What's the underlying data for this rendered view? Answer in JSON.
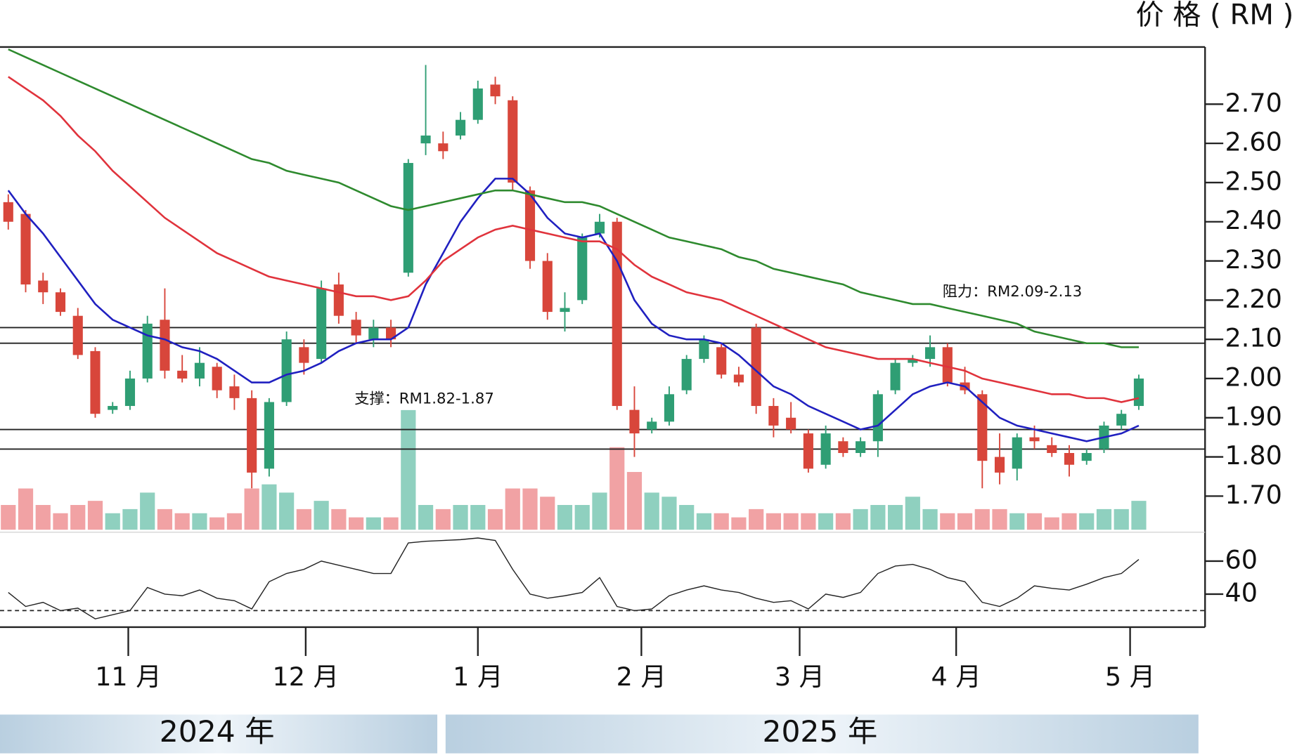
{
  "chart_data": {
    "type": "candlestick",
    "title": "价 格 ( RM )",
    "open": [
      2.45,
      2.42,
      2.25,
      2.22,
      2.16,
      2.07,
      1.92,
      1.93,
      2.0,
      2.15,
      2.02,
      2.0,
      2.03,
      1.98,
      1.95,
      1.77,
      1.94,
      2.08,
      2.05,
      2.24,
      2.15,
      2.1,
      2.13,
      2.27,
      2.6,
      2.6,
      2.62,
      2.66,
      2.75,
      2.71,
      2.48,
      2.3,
      2.17,
      2.2,
      2.37,
      2.4,
      1.92,
      1.87,
      1.89,
      1.97,
      2.05,
      2.08,
      2.01,
      2.13,
      1.93,
      1.9,
      1.86,
      1.78,
      1.84,
      1.81,
      1.84,
      1.97,
      2.04,
      2.05,
      2.08,
      1.99,
      1.96,
      1.8,
      1.77,
      1.85,
      1.83,
      1.81,
      1.79,
      1.82,
      1.88,
      1.93
    ],
    "high": [
      2.47,
      2.43,
      2.27,
      2.23,
      2.18,
      2.08,
      1.94,
      2.02,
      2.16,
      2.23,
      2.06,
      2.08,
      2.04,
      2.01,
      1.97,
      1.95,
      2.12,
      2.1,
      2.25,
      2.27,
      2.17,
      2.15,
      2.15,
      2.56,
      2.8,
      2.63,
      2.68,
      2.76,
      2.77,
      2.72,
      2.49,
      2.32,
      2.22,
      2.37,
      2.42,
      2.41,
      1.98,
      1.9,
      1.98,
      2.06,
      2.11,
      2.09,
      2.03,
      2.14,
      1.95,
      1.94,
      1.87,
      1.88,
      1.85,
      1.85,
      1.97,
      2.05,
      2.06,
      2.11,
      2.09,
      2.03,
      1.97,
      1.86,
      1.86,
      1.88,
      1.85,
      1.83,
      1.82,
      1.89,
      1.92,
      2.01
    ],
    "low": [
      2.38,
      2.22,
      2.19,
      2.16,
      2.05,
      1.9,
      1.91,
      1.92,
      1.99,
      2.0,
      1.99,
      1.98,
      1.95,
      1.92,
      1.72,
      1.75,
      1.93,
      2.01,
      2.04,
      2.14,
      2.09,
      2.08,
      2.08,
      2.26,
      2.57,
      2.56,
      2.61,
      2.65,
      2.7,
      2.48,
      2.28,
      2.15,
      2.12,
      2.19,
      2.36,
      1.92,
      1.8,
      1.86,
      1.88,
      1.96,
      2.04,
      2.0,
      1.98,
      1.91,
      1.85,
      1.86,
      1.76,
      1.77,
      1.8,
      1.8,
      1.8,
      1.96,
      2.03,
      2.03,
      1.98,
      1.96,
      1.72,
      1.73,
      1.74,
      1.82,
      1.8,
      1.75,
      1.78,
      1.81,
      1.87,
      1.92
    ],
    "close": [
      2.4,
      2.24,
      2.22,
      2.17,
      2.06,
      1.91,
      1.93,
      2.0,
      2.14,
      2.02,
      2.0,
      2.04,
      1.97,
      1.95,
      1.76,
      1.94,
      2.1,
      2.04,
      2.23,
      2.16,
      2.11,
      2.13,
      2.1,
      2.55,
      2.62,
      2.58,
      2.66,
      2.74,
      2.72,
      2.5,
      2.3,
      2.17,
      2.18,
      2.36,
      2.4,
      1.93,
      1.86,
      1.89,
      1.96,
      2.05,
      2.1,
      2.01,
      1.99,
      1.93,
      1.88,
      1.87,
      1.77,
      1.86,
      1.81,
      1.84,
      1.96,
      2.04,
      2.05,
      2.08,
      1.99,
      1.97,
      1.79,
      1.76,
      1.85,
      1.84,
      1.81,
      1.78,
      1.81,
      1.88,
      1.91,
      2.0
    ],
    "volume": [
      30,
      50,
      30,
      20,
      30,
      35,
      20,
      25,
      45,
      25,
      20,
      20,
      15,
      20,
      50,
      55,
      45,
      25,
      35,
      25,
      15,
      15,
      15,
      145,
      30,
      25,
      30,
      30,
      25,
      50,
      50,
      40,
      30,
      30,
      45,
      100,
      70,
      45,
      40,
      30,
      20,
      20,
      15,
      25,
      20,
      20,
      20,
      20,
      20,
      25,
      30,
      30,
      40,
      25,
      20,
      20,
      25,
      25,
      20,
      20,
      15,
      20,
      20,
      25,
      25,
      35
    ],
    "up_color": "#2f9e74",
    "down_color": "#d8463b",
    "volume_up_color": "#8fd0bf",
    "volume_down_color": "#f1a2a4",
    "lines": [
      {
        "color": "#2020c0",
        "values": [
          2.48,
          2.42,
          2.37,
          2.31,
          2.25,
          2.19,
          2.15,
          2.13,
          2.11,
          2.1,
          2.08,
          2.07,
          2.05,
          2.02,
          1.99,
          1.99,
          2.01,
          2.02,
          2.04,
          2.07,
          2.09,
          2.1,
          2.1,
          2.13,
          2.24,
          2.32,
          2.4,
          2.46,
          2.51,
          2.51,
          2.47,
          2.41,
          2.37,
          2.36,
          2.37,
          2.3,
          2.2,
          2.14,
          2.11,
          2.1,
          2.1,
          2.09,
          2.06,
          2.02,
          1.98,
          1.96,
          1.93,
          1.91,
          1.89,
          1.87,
          1.88,
          1.92,
          1.96,
          1.98,
          1.99,
          1.98,
          1.94,
          1.9,
          1.88,
          1.87,
          1.86,
          1.85,
          1.84,
          1.85,
          1.86,
          1.88
        ]
      },
      {
        "color": "#e0333c",
        "values": [
          2.77,
          2.74,
          2.71,
          2.67,
          2.62,
          2.58,
          2.53,
          2.49,
          2.45,
          2.41,
          2.38,
          2.35,
          2.32,
          2.3,
          2.28,
          2.26,
          2.25,
          2.24,
          2.23,
          2.22,
          2.21,
          2.21,
          2.2,
          2.21,
          2.25,
          2.3,
          2.33,
          2.36,
          2.38,
          2.39,
          2.38,
          2.37,
          2.36,
          2.35,
          2.35,
          2.33,
          2.29,
          2.26,
          2.24,
          2.22,
          2.21,
          2.2,
          2.18,
          2.16,
          2.14,
          2.12,
          2.1,
          2.08,
          2.07,
          2.06,
          2.05,
          2.05,
          2.05,
          2.04,
          2.03,
          2.02,
          2.0,
          1.99,
          1.98,
          1.97,
          1.96,
          1.96,
          1.95,
          1.95,
          1.94,
          1.95
        ]
      },
      {
        "color": "#2e8a2e",
        "values": [
          2.84,
          2.82,
          2.8,
          2.78,
          2.76,
          2.74,
          2.72,
          2.7,
          2.68,
          2.66,
          2.64,
          2.62,
          2.6,
          2.58,
          2.56,
          2.55,
          2.53,
          2.52,
          2.51,
          2.5,
          2.48,
          2.46,
          2.44,
          2.43,
          2.44,
          2.45,
          2.46,
          2.47,
          2.48,
          2.48,
          2.47,
          2.46,
          2.45,
          2.45,
          2.44,
          2.42,
          2.4,
          2.38,
          2.36,
          2.35,
          2.34,
          2.33,
          2.31,
          2.3,
          2.28,
          2.27,
          2.26,
          2.25,
          2.24,
          2.22,
          2.21,
          2.2,
          2.19,
          2.19,
          2.18,
          2.17,
          2.16,
          2.15,
          2.14,
          2.12,
          2.11,
          2.1,
          2.09,
          2.09,
          2.08,
          2.08
        ]
      }
    ],
    "levels": [
      2.13,
      2.09,
      1.87,
      1.82
    ],
    "annotations": [
      "阻力：RM2.09-2.13",
      "支撑：RM1.82-1.87"
    ],
    "ylim": [
      1.61,
      2.85
    ],
    "yticks": [
      2.7,
      2.6,
      2.5,
      2.4,
      2.3,
      2.2,
      2.1,
      2.0,
      1.9,
      1.8,
      1.7
    ],
    "vlim": [
      0,
      160
    ],
    "xlim": [
      -0.476,
      68.81
    ],
    "xticks": [
      {
        "value": 6.9,
        "label": "11 月"
      },
      {
        "value": 17.1,
        "label": "12 月"
      },
      {
        "value": 27,
        "label": "1 月"
      },
      {
        "value": 36.4,
        "label": "2 月"
      },
      {
        "value": 45.5,
        "label": "3 月"
      },
      {
        "value": 54.5,
        "label": "4 月"
      },
      {
        "value": 64.5,
        "label": "5 月"
      }
    ],
    "years": [
      "2024 年",
      "2025 年"
    ],
    "rsi": {
      "values": [
        41,
        32.5,
        35,
        30,
        31.5,
        25,
        27.5,
        30,
        44,
        40,
        39,
        42.5,
        37.5,
        36,
        31,
        47.5,
        52.5,
        55,
        60,
        57.5,
        55,
        52.5,
        52.5,
        71,
        72,
        72.5,
        73,
        74,
        72.5,
        55,
        40,
        37.5,
        39,
        41,
        50,
        32.5,
        30,
        31,
        39,
        42.5,
        45,
        42.5,
        41,
        37.5,
        35,
        36,
        31,
        40,
        38,
        41,
        52.5,
        57,
        58,
        55,
        50,
        47.5,
        35,
        32.5,
        37.5,
        45,
        43.5,
        42.5,
        46,
        50,
        52.5,
        61
      ],
      "ylim": [
        20,
        77.5
      ],
      "yticks": [
        60,
        40
      ],
      "levels": [
        30
      ]
    }
  }
}
